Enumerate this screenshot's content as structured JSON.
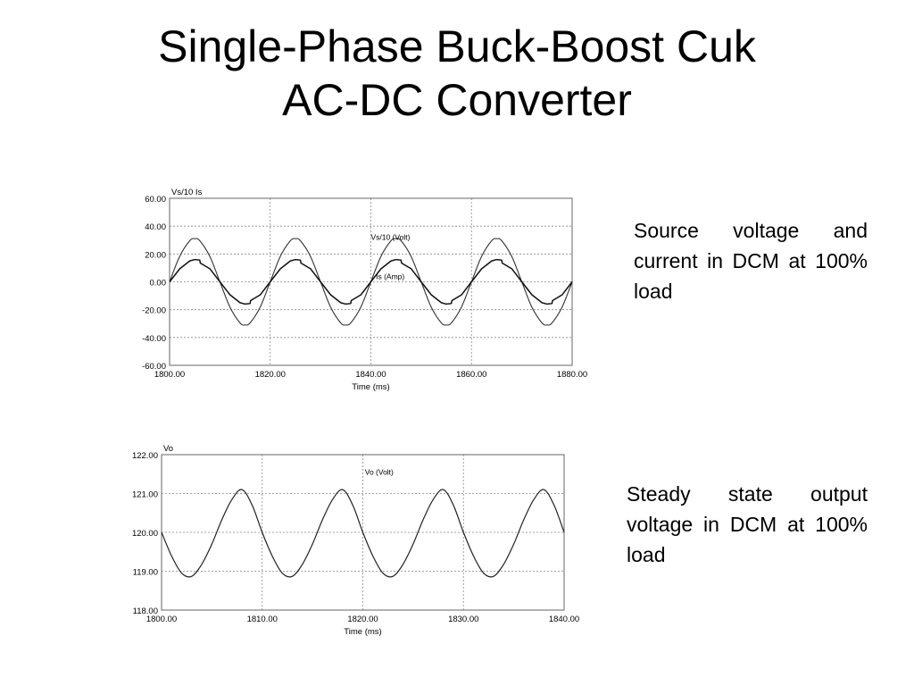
{
  "slide": {
    "title_line1": "Single-Phase Buck-Boost Cuk",
    "title_line2": "AC-DC Converter"
  },
  "captions": [
    "Source voltage and current in DCM at 100% load",
    "Steady state output voltage in DCM at 100% load"
  ],
  "chart_data": [
    {
      "type": "line",
      "title": "",
      "top_label": "Vs/10   Is",
      "xlabel": "Time (ms)",
      "ylabel": "",
      "xlim": [
        1800,
        1880
      ],
      "ylim": [
        -60,
        60
      ],
      "x_ticks": [
        1800,
        1820,
        1840,
        1860,
        1880
      ],
      "x_tick_labels": [
        "1800.00",
        "1820.00",
        "1840.00",
        "1860.00",
        "1880.00"
      ],
      "y_ticks": [
        60,
        40,
        20,
        0,
        -20,
        -40,
        -60
      ],
      "y_tick_labels": [
        "60.00",
        "40.00",
        "20.00",
        "0.00",
        "-20.00",
        "-40.00",
        "-60.00"
      ],
      "grid": true,
      "series": [
        {
          "name": "Vs/10 (Volt)",
          "label_position": [
            1840,
            32
          ],
          "x": [
            1800,
            1802,
            1804,
            1805,
            1806,
            1808,
            1810,
            1812,
            1814,
            1815,
            1816,
            1818,
            1820,
            1822,
            1824,
            1825,
            1826,
            1828,
            1830,
            1832,
            1834,
            1835,
            1836,
            1838,
            1840,
            1842,
            1844,
            1845,
            1846,
            1848,
            1850,
            1852,
            1854,
            1855,
            1856,
            1858,
            1860,
            1862,
            1864,
            1865,
            1866,
            1868,
            1870,
            1872,
            1874,
            1875,
            1876,
            1878,
            1880
          ],
          "values": [
            0,
            18.2,
            29.5,
            31,
            29.5,
            18.2,
            0,
            -18.2,
            -29.5,
            -31,
            -29.5,
            -18.2,
            0,
            18.2,
            29.5,
            31,
            29.5,
            18.2,
            0,
            -18.2,
            -29.5,
            -31,
            -29.5,
            -18.2,
            0,
            18.2,
            29.5,
            31,
            29.5,
            18.2,
            0,
            -18.2,
            -29.5,
            -31,
            -29.5,
            -18.2,
            0,
            18.2,
            29.5,
            31,
            29.5,
            18.2,
            0,
            -18.2,
            -29.5,
            -31,
            -29.5,
            -18.2,
            0
          ]
        },
        {
          "name": "Is (Amp)",
          "label_position": [
            1841,
            4
          ],
          "x": [
            1800,
            1802,
            1804,
            1805,
            1806,
            1806.1,
            1808,
            1810,
            1812,
            1814,
            1815,
            1816,
            1816.1,
            1818,
            1820,
            1822,
            1824,
            1825,
            1826,
            1826.1,
            1828,
            1830,
            1832,
            1834,
            1835,
            1836,
            1836.1,
            1838,
            1840,
            1842,
            1844,
            1845,
            1846,
            1846.1,
            1848,
            1850,
            1852,
            1854,
            1855,
            1856,
            1856.1,
            1858,
            1860,
            1862,
            1864,
            1865,
            1866,
            1866.1,
            1868,
            1870,
            1872,
            1874,
            1875,
            1876,
            1876.1,
            1878,
            1880
          ],
          "values": [
            0,
            9.3,
            15,
            16,
            15.6,
            13.5,
            9.4,
            0,
            -9.3,
            -15,
            -16,
            -15.6,
            -13.5,
            -9.4,
            0,
            9.3,
            15,
            16,
            15.6,
            13.5,
            9.4,
            0,
            -9.3,
            -15,
            -16,
            -15.6,
            -13.5,
            -9.4,
            0,
            9.3,
            15,
            16,
            15.6,
            13.5,
            9.4,
            0,
            -9.3,
            -15,
            -16,
            -15.6,
            -13.5,
            -9.4,
            0,
            9.3,
            15,
            16,
            15.6,
            13.5,
            9.4,
            0,
            -9.3,
            -15,
            -16,
            -15.6,
            -13.5,
            -9.4,
            0
          ]
        }
      ]
    },
    {
      "type": "line",
      "title": "",
      "top_label": "Vo",
      "xlabel": "Time (ms)",
      "ylabel": "",
      "xlim": [
        1800,
        1840
      ],
      "ylim": [
        118,
        122
      ],
      "x_ticks": [
        1800,
        1810,
        1820,
        1830,
        1840
      ],
      "x_tick_labels": [
        "1800.00",
        "1810.00",
        "1820.00",
        "1830.00",
        "1840.00"
      ],
      "y_ticks": [
        122,
        121,
        120,
        119,
        118
      ],
      "y_tick_labels": [
        "122.00",
        "121.00",
        "120.00",
        "119.00",
        "118.00"
      ],
      "grid": true,
      "series": [
        {
          "name": "Vo (Volt)",
          "label_position": [
            1820.2,
            121.55
          ],
          "x": [
            1800,
            1801,
            1802,
            1803,
            1804,
            1805,
            1806,
            1807,
            1808,
            1809,
            1810,
            1811,
            1812,
            1813,
            1814,
            1815,
            1816,
            1817,
            1818,
            1819,
            1820,
            1821,
            1822,
            1823,
            1824,
            1825,
            1826,
            1827,
            1828,
            1829,
            1830,
            1831,
            1832,
            1833,
            1834,
            1835,
            1836,
            1837,
            1838,
            1839,
            1840
          ],
          "values": [
            120,
            119.39,
            118.95,
            118.87,
            119.18,
            119.7,
            120.33,
            120.85,
            121.1,
            120.7,
            120,
            119.39,
            118.95,
            118.87,
            119.18,
            119.7,
            120.33,
            120.85,
            121.1,
            120.7,
            120,
            119.39,
            118.95,
            118.87,
            119.18,
            119.7,
            120.33,
            120.85,
            121.1,
            120.7,
            120,
            119.39,
            118.95,
            118.87,
            119.18,
            119.7,
            120.33,
            120.85,
            121.1,
            120.7,
            120
          ]
        }
      ]
    }
  ]
}
